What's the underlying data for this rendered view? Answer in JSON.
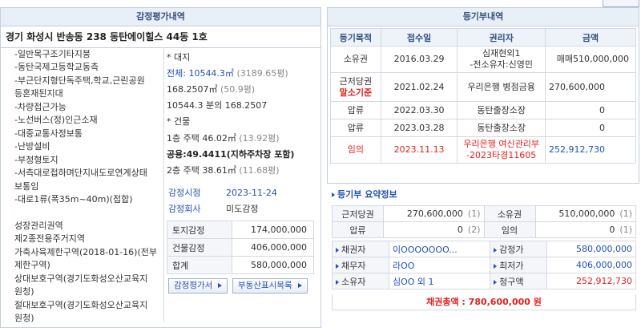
{
  "appraisal": {
    "title": "감정평가내역",
    "address": "경기 화성시 반송동 238 동탄에이힐스 44동 1호",
    "features": [
      "-일반목구조기타지붕",
      "-동탄국제고등학교동측",
      "-부근단지형단독주택,학교,근린공원",
      "등혼재된지대",
      "-차량접근가능",
      "-노선버스(정)인근소재",
      "-대중교통사정보통",
      "-난방설비",
      "-부정형토지",
      "-서측대로접하며단지내도로연계상태",
      "보통임",
      "-대로1류(폭35m~40m)(접합)"
    ],
    "zoning": [
      "성장관리권역",
      "제2종전용주거지역",
      "가축사육제한구역(2018-01-16)(전부",
      "제한구역)",
      "상대보호구역(경기도화성오산교육지",
      "원청)",
      "절대보호구역(경기도화성오산교육지",
      "원청)"
    ],
    "land": {
      "heading": "* 대지",
      "total": "전체: 10544.3㎡",
      "total_pyeong": "(3189.65평)",
      "share": "168.2507㎡",
      "share_pyeong": "(50.9평)",
      "ratio": "10544.3 분의 168.2507"
    },
    "building": {
      "heading": "* 건물",
      "floor1": "1층 주택 46.02㎡",
      "floor1_pyeong": "(13.92평)",
      "common": "공용:49.4411(지하주차장 포함)",
      "floor2": "2층 주택 38.61㎡",
      "floor2_pyeong": "(11.68평)"
    },
    "date_label": "감정시점",
    "date": "2023-11-24",
    "company_label": "감정회사",
    "company": "미도감정",
    "amounts": [
      [
        "토지감정",
        "174,000,000"
      ],
      [
        "건물감정",
        "406,000,000"
      ],
      [
        "합계",
        "580,000,000"
      ]
    ],
    "buttons": [
      "감정평가서",
      "부동산표시목록"
    ]
  },
  "registry": {
    "title": "등기부내역",
    "columns": [
      "등기목적",
      "접수일",
      "권리자",
      "금액"
    ],
    "rows": [
      [
        [
          "소유권"
        ],
        [
          "2016.03.29"
        ],
        [
          "심재현외1",
          "-전소유자:신영민"
        ],
        [
          "매매510,000,000"
        ]
      ],
      [
        [
          "근저당권",
          "말소기준"
        ],
        [
          "2021.02.24"
        ],
        [
          "우리은행 병점금융"
        ],
        [
          "270,600,000"
        ]
      ],
      [
        [
          "압류"
        ],
        [
          "2022.03.30"
        ],
        [
          "동탄출장소장"
        ],
        [
          "0"
        ]
      ],
      [
        [
          "압류"
        ],
        [
          "2023.03.28"
        ],
        [
          "동탄출장소장"
        ],
        [
          "0"
        ]
      ],
      [
        [
          "임의"
        ],
        [
          "2023.11.13"
        ],
        [
          "우리은행 여신관리부",
          "-2023타경11605"
        ],
        [
          "252,912,730"
        ]
      ]
    ]
  },
  "summary": {
    "title": "등기부 요약정보",
    "counts": [
      [
        [
          "근저당권",
          "270,600,000",
          "(1)"
        ],
        [
          "소유권",
          "510,000,000",
          "(1)"
        ]
      ],
      [
        [
          "압류",
          "0",
          "(2)"
        ],
        [
          "임의",
          "0",
          "(1)"
        ]
      ]
    ],
    "parties": [
      [
        [
          "채권자",
          "이OOOOOOO..."
        ],
        [
          "감정가",
          "580,000,000"
        ]
      ],
      [
        [
          "채무자",
          "라OO"
        ],
        [
          "최저가",
          "406,000,000"
        ]
      ],
      [
        [
          "소유자",
          "심OO 외 1"
        ],
        [
          "청구액",
          "252,912,730"
        ]
      ]
    ],
    "total": "채권총액 : 780,600,000 원"
  }
}
